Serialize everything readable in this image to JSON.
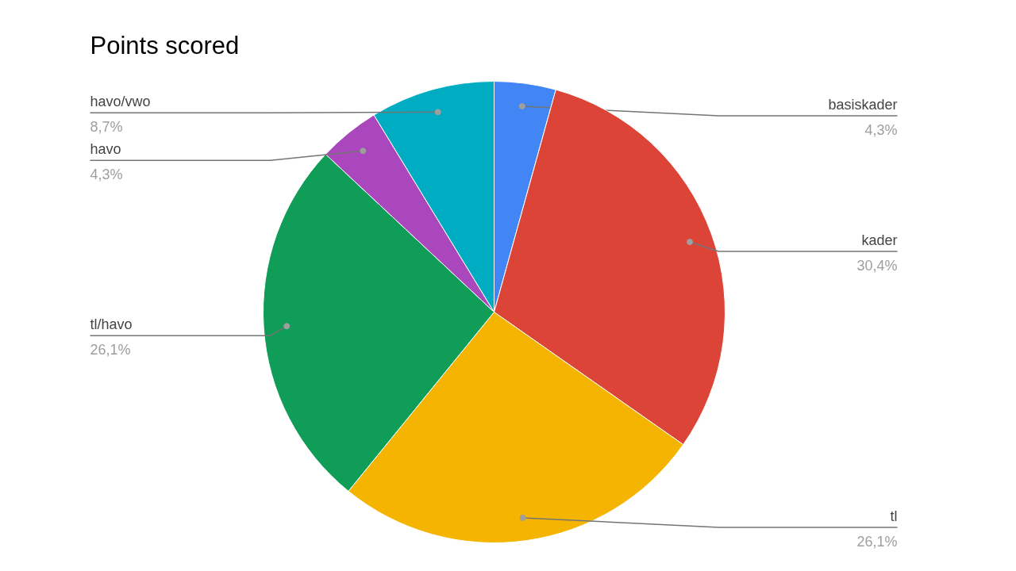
{
  "chart_data": {
    "type": "pie",
    "title": "Points scored",
    "categories": [
      "basiskader",
      "kader",
      "tl",
      "tl/havo",
      "havo",
      "havo/vwo"
    ],
    "values": [
      4.3,
      30.4,
      26.1,
      26.1,
      4.3,
      8.7
    ],
    "value_labels": [
      "4,3%",
      "30,4%",
      "26,1%",
      "26,1%",
      "4,3%",
      "8,7%"
    ],
    "colors": [
      "#4285f4",
      "#db4437",
      "#f4b400",
      "#0f9d58",
      "#ab47bc",
      "#00acc1"
    ]
  }
}
